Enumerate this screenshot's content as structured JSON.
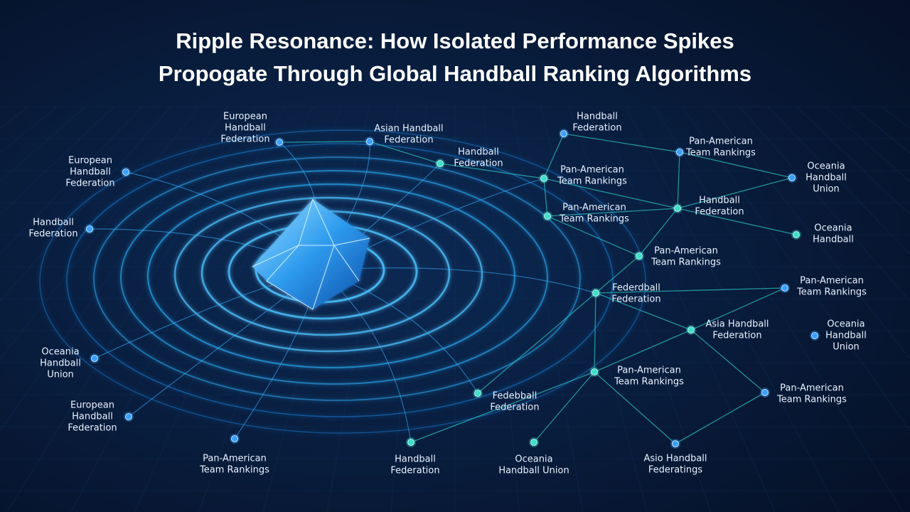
{
  "title": [
    "Ripple Resonance: How Isolated Performance Spikes",
    "Propogate Through Global Handball Ranking Algorithms"
  ],
  "nodes": [
    {
      "label": [
        "European",
        "Handball",
        "Federation"
      ]
    },
    {
      "label": [
        "Asian Handball",
        "Federation"
      ]
    },
    {
      "label": [
        "Handball",
        "Federation"
      ]
    },
    {
      "label": [
        "European",
        "Handball",
        "Federation"
      ]
    },
    {
      "label": [
        "Handball",
        "Federation"
      ]
    },
    {
      "label": [
        "Oceania",
        "Handball",
        "Union"
      ]
    },
    {
      "label": [
        "European",
        "Handball",
        "Federation"
      ]
    },
    {
      "label": [
        "Pan-American",
        "Team Rankings"
      ]
    },
    {
      "label": [
        "Handball",
        "Federation"
      ]
    },
    {
      "label": [
        "Fedebball",
        "Federation"
      ]
    },
    {
      "label": [
        "Oceania",
        "Handball Union"
      ]
    },
    {
      "label": [
        "Asio Handball",
        "Federatings"
      ]
    },
    {
      "label": [
        "Pan-American",
        "Team Rankings"
      ]
    },
    {
      "label": [
        "Pan-American",
        "Team Rankings"
      ]
    },
    {
      "label": [
        "Asia Handball",
        "Federation"
      ]
    },
    {
      "label": [
        "Oceania",
        "Handball",
        "Union"
      ]
    },
    {
      "label": [
        "Federdball",
        "Federation"
      ]
    },
    {
      "label": [
        "Pan-American",
        "Team Rankings"
      ]
    },
    {
      "label": [
        "Pan-American",
        "Team Rankings"
      ]
    },
    {
      "label": [
        "Handball",
        "Federation"
      ]
    },
    {
      "label": [
        "Oceania",
        "Handball"
      ]
    },
    {
      "label": [
        "Pan-American",
        "Team Rankings"
      ]
    },
    {
      "label": [
        "Pan-American",
        "Team Rankings"
      ]
    },
    {
      "label": [
        "Handball",
        "Federation"
      ]
    },
    {
      "label": [
        "Pan-American",
        "Team Rankings"
      ]
    },
    {
      "label": [
        "Oceania",
        "Handball",
        "Union"
      ]
    }
  ]
}
